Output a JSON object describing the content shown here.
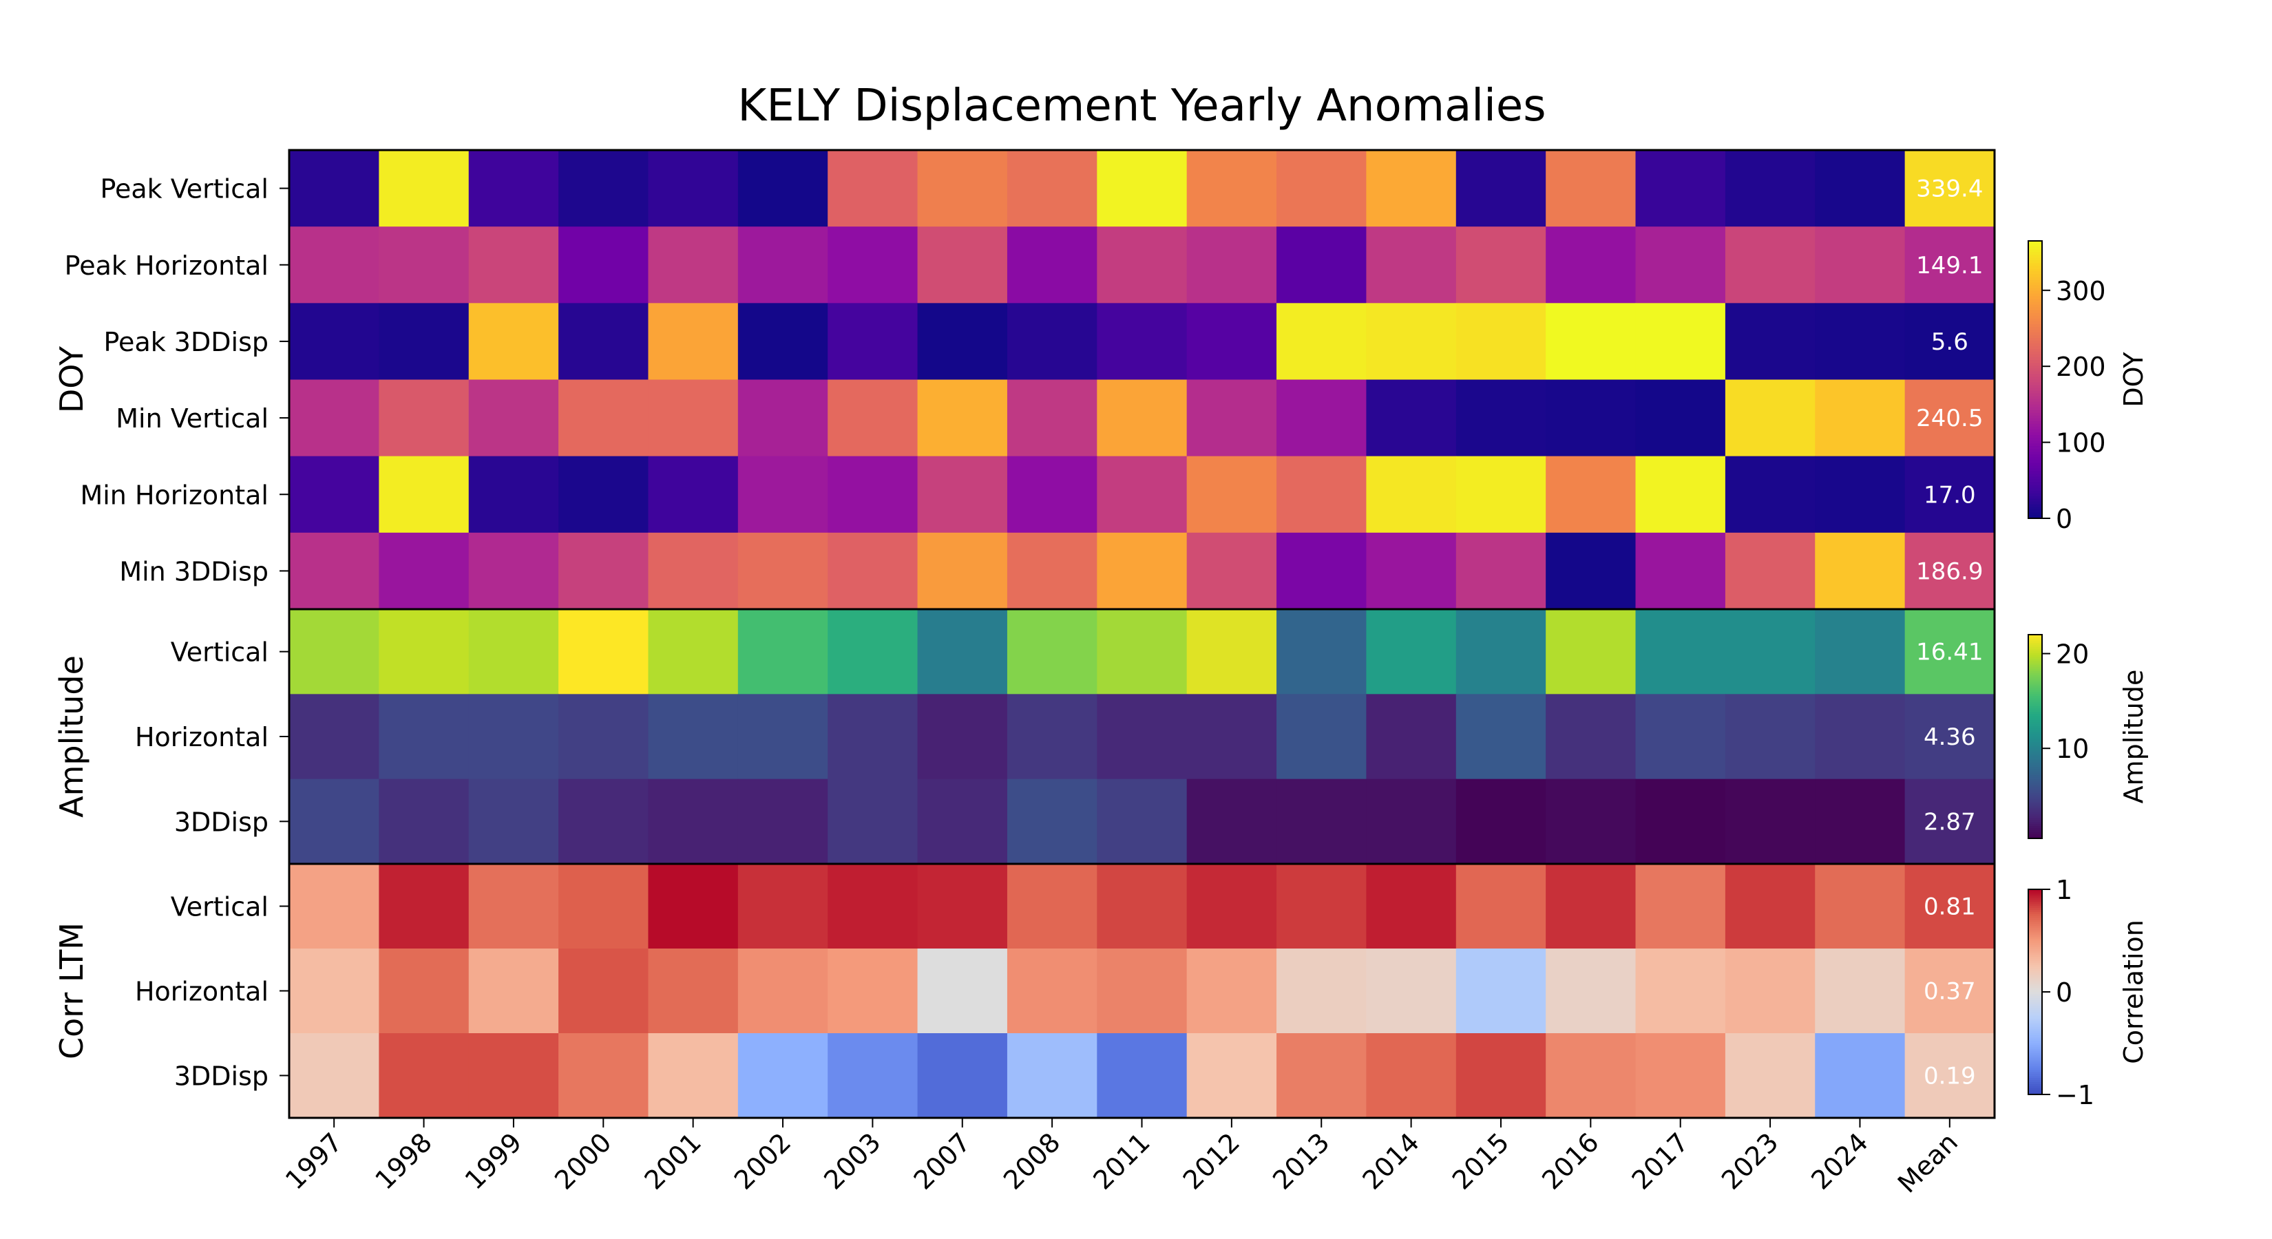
{
  "chart_data": {
    "type": "heatmap",
    "title": "KELY Displacement Yearly Anomalies",
    "columns": [
      "1997",
      "1998",
      "1999",
      "2000",
      "2001",
      "2002",
      "2003",
      "2007",
      "2008",
      "2011",
      "2012",
      "2013",
      "2014",
      "2015",
      "2016",
      "2017",
      "2023",
      "2024",
      "Mean"
    ],
    "panels": [
      {
        "group_label": "DOY",
        "colormap": "plasma",
        "colorbar_label": "DOY",
        "vmin": 0,
        "vmax": 365,
        "colorbar_ticks": [
          0,
          100,
          200,
          300
        ],
        "rows": [
          {
            "label": "Peak Vertical",
            "values": [
              20,
              355,
              35,
              12,
              25,
              5,
              215,
              250,
              235,
              360,
              255,
              240,
              295,
              18,
              245,
              30,
              15,
              8,
              339.4
            ],
            "mean_text": "339.4"
          },
          {
            "label": "Peak Horizontal",
            "values": [
              155,
              160,
              180,
              80,
              165,
              125,
              110,
              190,
              105,
              170,
              155,
              60,
              165,
              190,
              115,
              135,
              180,
              170,
              149.1
            ],
            "mean_text": "149.1"
          },
          {
            "label": "Peak 3DDisp",
            "values": [
              15,
              10,
              315,
              18,
              290,
              5,
              40,
              5,
              18,
              40,
              55,
              355,
              350,
              345,
              365,
              365,
              10,
              8,
              5.6
            ],
            "mean_text": "5.6"
          },
          {
            "label": "Min Vertical",
            "values": [
              155,
              205,
              160,
              225,
              225,
              135,
              225,
              300,
              165,
              290,
              150,
              120,
              20,
              10,
              8,
              5,
              340,
              320,
              240.5
            ],
            "mean_text": "240.5"
          },
          {
            "label": "Min Horizontal",
            "values": [
              40,
              355,
              20,
              10,
              35,
              125,
              115,
              175,
              110,
              170,
              255,
              225,
              350,
              355,
              255,
              360,
              10,
              8,
              17.0
            ],
            "mean_text": "17.0"
          },
          {
            "label": "Min 3DDisp",
            "values": [
              155,
              120,
              145,
              175,
              220,
              230,
              215,
              280,
              230,
              290,
              190,
              90,
              120,
              160,
              5,
              120,
              210,
              320,
              186.9
            ],
            "mean_text": "186.9"
          }
        ]
      },
      {
        "group_label": "Amplitude",
        "colormap": "viridis",
        "colorbar_label": "Amplitude",
        "vmin": 0.5,
        "vmax": 22,
        "colorbar_ticks": [
          10,
          20
        ],
        "rows": [
          {
            "label": "Vertical",
            "values": [
              19.0,
              20.0,
              19.5,
              22.0,
              19.5,
              15.5,
              14.0,
              9.5,
              18.0,
              19.0,
              21.0,
              7.5,
              12.5,
              10.0,
              19.5,
              11.0,
              11.0,
              10.0,
              16.41
            ],
            "mean_text": "16.41"
          },
          {
            "label": "Horizontal",
            "values": [
              3.5,
              5.0,
              5.0,
              4.5,
              5.5,
              5.5,
              4.0,
              2.5,
              4.0,
              3.0,
              3.0,
              6.0,
              2.5,
              6.5,
              3.5,
              5.0,
              4.5,
              4.0,
              4.36
            ],
            "mean_text": "4.36"
          },
          {
            "label": "3DDisp",
            "values": [
              5.0,
              3.5,
              4.5,
              3.0,
              2.5,
              2.5,
              4.0,
              3.0,
              5.5,
              4.5,
              1.5,
              1.5,
              1.5,
              0.7,
              1.0,
              0.6,
              0.8,
              0.8,
              2.87
            ],
            "mean_text": "2.87"
          }
        ]
      },
      {
        "group_label": "Corr LTM",
        "colormap": "coolwarm",
        "colorbar_label": "Correlation",
        "vmin": -1,
        "vmax": 1,
        "colorbar_ticks": [
          -1,
          0,
          1
        ],
        "rows": [
          {
            "label": "Vertical",
            "values": [
              0.45,
              0.92,
              0.68,
              0.75,
              0.98,
              0.88,
              0.93,
              0.91,
              0.72,
              0.82,
              0.9,
              0.85,
              0.93,
              0.72,
              0.88,
              0.65,
              0.85,
              0.7,
              0.81
            ],
            "mean_text": "0.81"
          },
          {
            "label": "Horizontal",
            "values": [
              0.3,
              0.7,
              0.4,
              0.78,
              0.7,
              0.55,
              0.5,
              0.0,
              0.55,
              0.6,
              0.45,
              0.15,
              0.12,
              -0.3,
              0.12,
              0.3,
              0.35,
              0.15,
              0.37
            ],
            "mean_text": "0.37"
          },
          {
            "label": "3DDisp",
            "values": [
              0.2,
              0.8,
              0.8,
              0.65,
              0.3,
              -0.5,
              -0.7,
              -0.85,
              -0.4,
              -0.8,
              0.25,
              0.62,
              0.72,
              0.82,
              0.58,
              0.55,
              0.2,
              -0.55,
              0.19
            ],
            "mean_text": "0.19"
          }
        ]
      }
    ]
  }
}
